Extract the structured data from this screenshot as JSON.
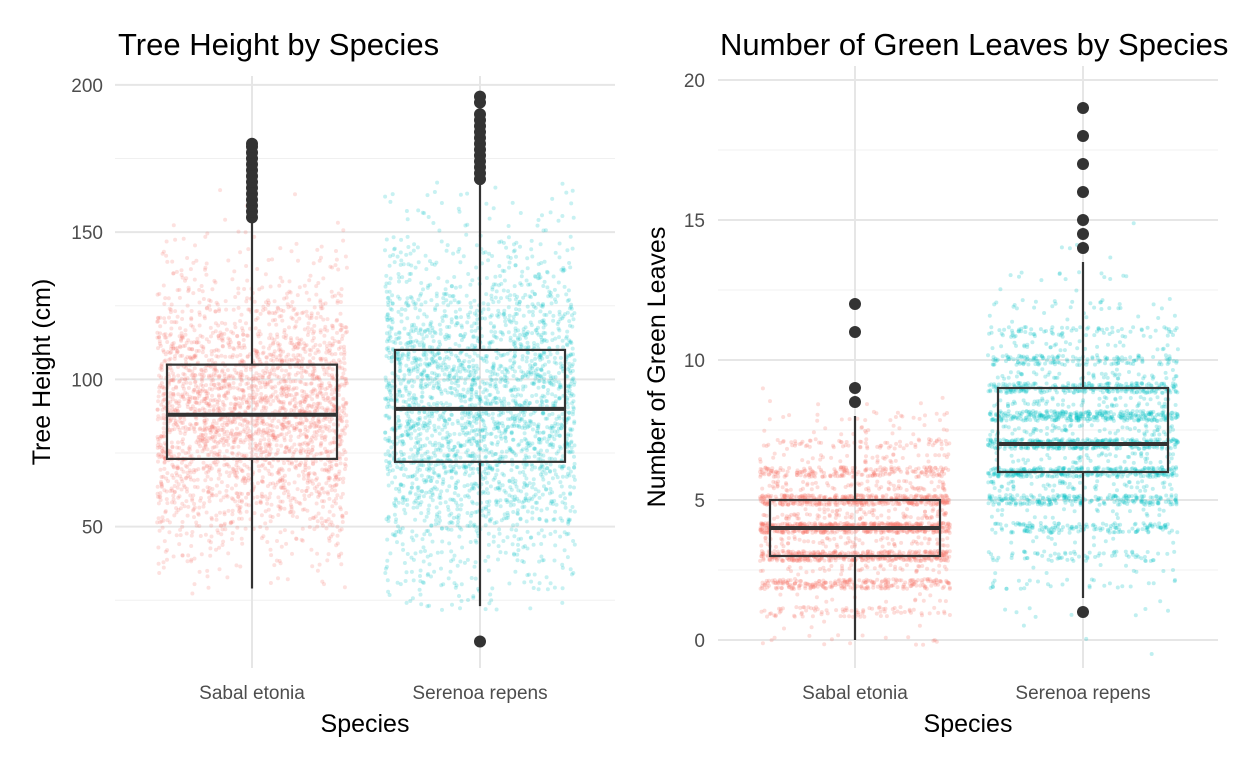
{
  "chart_data": [
    {
      "type": "boxplot",
      "title": "Tree Height by Species",
      "xlabel": "Species",
      "ylabel": "Tree Height (cm)",
      "categories": [
        "Sabal etonia",
        "Serenoa repens"
      ],
      "y_ticks": [
        50,
        100,
        150,
        200
      ],
      "ylim": [
        2,
        203
      ],
      "grid": true,
      "jitter_points": true,
      "colors": {
        "Sabal etonia": "#f8766d",
        "Serenoa repens": "#00bfc4"
      },
      "boxes": [
        {
          "category": "Sabal etonia",
          "min": 29,
          "q1": 73,
          "median": 88,
          "q3": 105,
          "max": 155,
          "outliers": [
            155,
            157,
            159,
            161,
            163,
            165,
            167,
            169,
            171,
            173,
            175,
            177,
            179,
            180
          ]
        },
        {
          "category": "Serenoa repens",
          "min": 23,
          "q1": 72,
          "median": 90,
          "q3": 110,
          "max": 168,
          "outliers": [
            11,
            168,
            170,
            172,
            174,
            176,
            178,
            180,
            182,
            184,
            186,
            188,
            190,
            194,
            196
          ]
        }
      ]
    },
    {
      "type": "boxplot",
      "title": "Number of Green Leaves by Species",
      "xlabel": "Species",
      "ylabel": "Number of Green Leaves",
      "categories": [
        "Sabal etonia",
        "Serenoa repens"
      ],
      "y_ticks": [
        0,
        5,
        10,
        15,
        20
      ],
      "ylim": [
        -1,
        20.5
      ],
      "grid": true,
      "jitter_points": true,
      "colors": {
        "Sabal etonia": "#f8766d",
        "Serenoa repens": "#00bfc4"
      },
      "boxes": [
        {
          "category": "Sabal etonia",
          "min": 0,
          "q1": 3,
          "median": 4,
          "q3": 5,
          "max": 8,
          "outliers": [
            8.5,
            9,
            11,
            12
          ]
        },
        {
          "category": "Serenoa repens",
          "min": 1.5,
          "q1": 6,
          "median": 7,
          "q3": 9,
          "max": 13.5,
          "outliers": [
            1,
            14,
            14.5,
            15,
            16,
            17,
            18,
            19
          ]
        }
      ]
    }
  ]
}
